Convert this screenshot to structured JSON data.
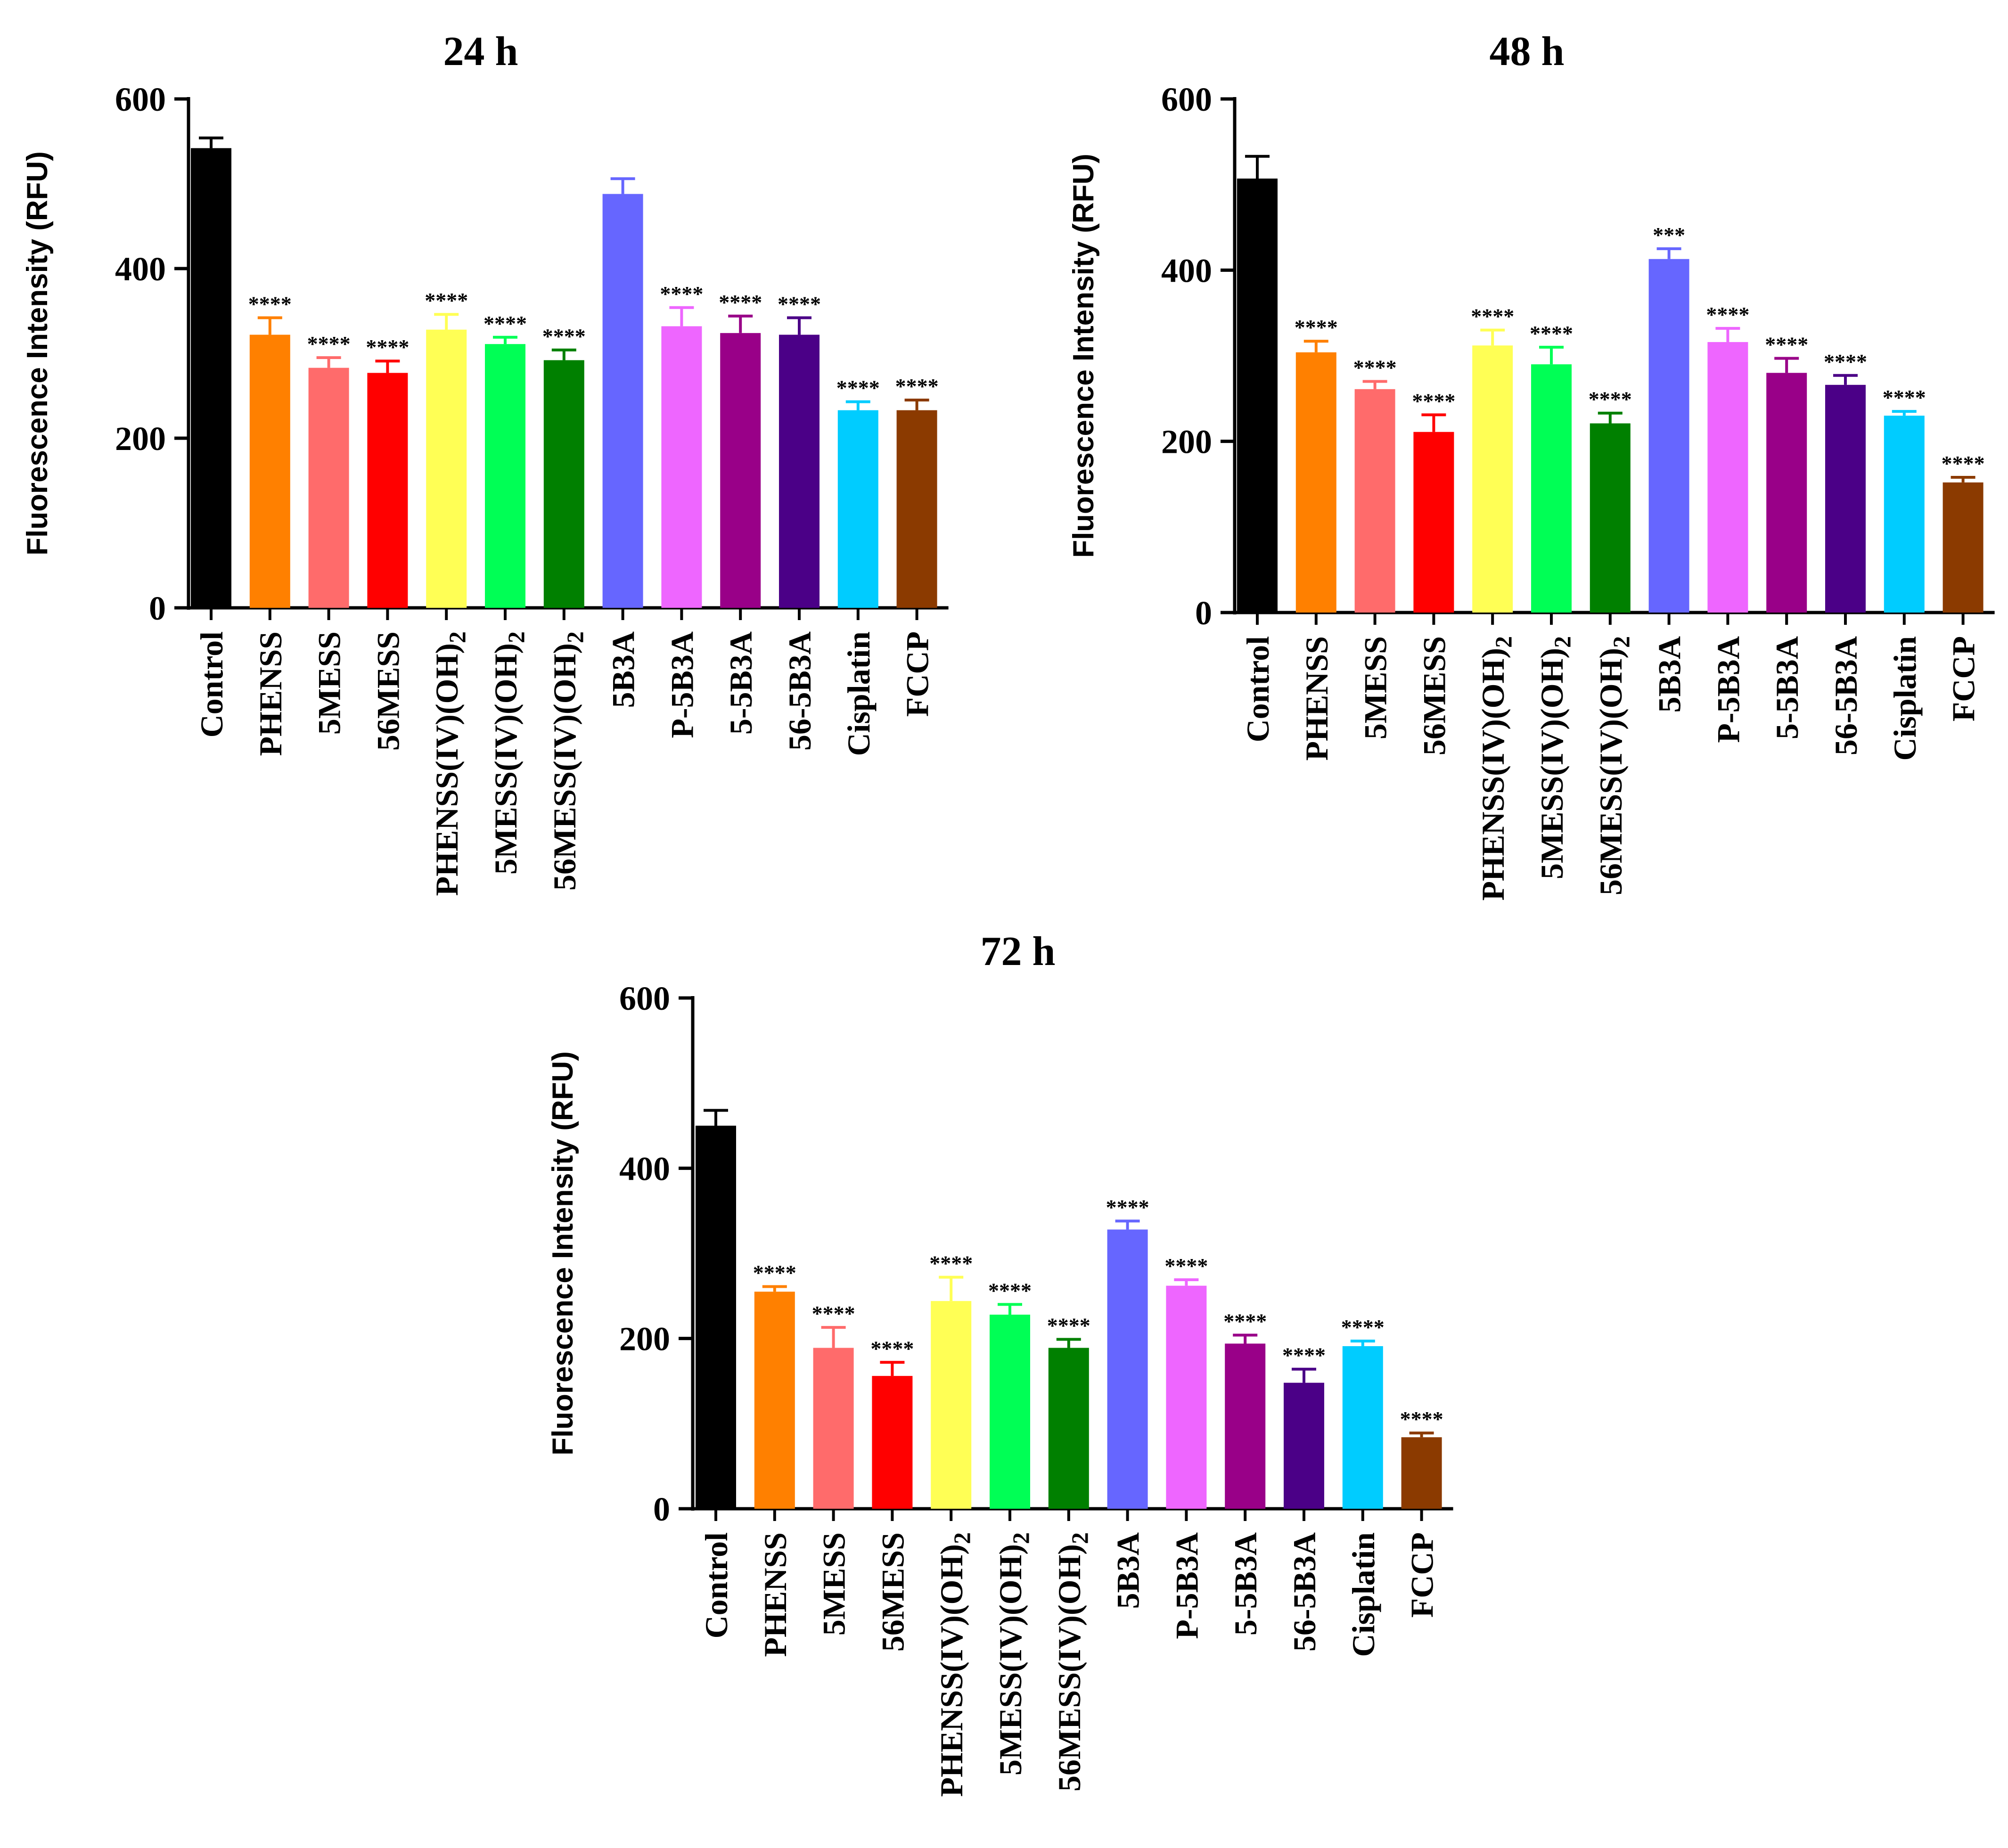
{
  "chart_data": [
    {
      "type": "bar",
      "title": "24 h",
      "ylabel": "Fluorescence Intensity (RFU)",
      "xlabel": "",
      "ylim": [
        0,
        600
      ],
      "yticks": [
        "0",
        "200",
        "400",
        "600"
      ],
      "categories": [
        "Control",
        "PHENSS",
        "5MESS",
        "56MESS",
        "PHENSS(IV)(OH)2",
        "5MESS(IV)(OH)2",
        "56MESS(IV)(OH)2",
        "5B3A",
        "P-5B3A",
        "5-5B3A",
        "56-5B3A",
        "Cisplatin",
        "FCCP"
      ],
      "values": [
        542,
        322,
        283,
        277,
        328,
        311,
        292,
        488,
        332,
        324,
        322,
        233,
        233
      ],
      "errors": [
        12,
        20,
        12,
        14,
        18,
        8,
        12,
        18,
        22,
        20,
        20,
        10,
        12
      ],
      "significance": [
        "",
        "****",
        "****",
        "****",
        "****",
        "****",
        "****",
        "",
        "****",
        "****",
        "****",
        "****",
        "****"
      ]
    },
    {
      "type": "bar",
      "title": "48 h",
      "ylabel": "Fluorescence Intensity (RFU)",
      "xlabel": "",
      "ylim": [
        0,
        600
      ],
      "yticks": [
        "0",
        "200",
        "400",
        "600"
      ],
      "categories": [
        "Control",
        "PHENSS",
        "5MESS",
        "56MESS",
        "PHENSS(IV)(OH)2",
        "5MESS(IV)(OH)2",
        "56MESS(IV)(OH)2",
        "5B3A",
        "P-5B3A",
        "5-5B3A",
        "56-5B3A",
        "Cisplatin",
        "FCCP"
      ],
      "values": [
        507,
        304,
        261,
        211,
        312,
        290,
        221,
        413,
        316,
        280,
        266,
        230,
        152
      ],
      "errors": [
        26,
        13,
        9,
        20,
        18,
        20,
        12,
        12,
        16,
        17,
        11,
        5,
        6
      ],
      "significance": [
        "",
        "****",
        "****",
        "****",
        "****",
        "****",
        "****",
        "***",
        "****",
        "****",
        "****",
        "****",
        "****"
      ]
    },
    {
      "type": "bar",
      "title": "72 h",
      "ylabel": "Fluorescence Intensity (RFU)",
      "xlabel": "",
      "ylim": [
        0,
        600
      ],
      "yticks": [
        "0",
        "200",
        "400",
        "600"
      ],
      "categories": [
        "Control",
        "PHENSS",
        "5MESS",
        "56MESS",
        "PHENSS(IV)(OH)2",
        "5MESS(IV)(OH)2",
        "56MESS(IV)(OH)2",
        "5B3A",
        "P-5B3A",
        "5-5B3A",
        "56-5B3A",
        "Cisplatin",
        "FCCP"
      ],
      "values": [
        450,
        255,
        189,
        156,
        244,
        228,
        189,
        328,
        262,
        194,
        148,
        191,
        84
      ],
      "errors": [
        18,
        6,
        24,
        16,
        28,
        12,
        10,
        10,
        7,
        10,
        16,
        6,
        5
      ],
      "significance": [
        "",
        "****",
        "****",
        "****",
        "****",
        "****",
        "****",
        "****",
        "****",
        "****",
        "****",
        "****",
        "****"
      ]
    }
  ],
  "colors": [
    "#000000",
    "#ff8000",
    "#ff6b6b",
    "#ff0000",
    "#ffff55",
    "#00ff55",
    "#008000",
    "#6666ff",
    "#ee66ff",
    "#990088",
    "#4b0087",
    "#00ccff",
    "#8b3a00"
  ],
  "subscript_suffix": "2"
}
